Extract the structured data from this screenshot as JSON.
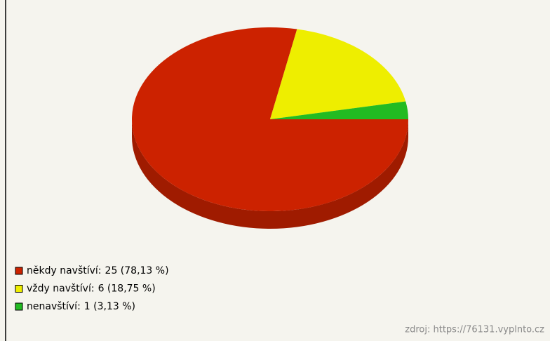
{
  "chart_data": {
    "type": "pie",
    "categories": [
      "někdy navštíví:",
      "vždy navštíví:",
      "nenavštíví:"
    ],
    "values": [
      25,
      6,
      1
    ],
    "value_labels": [
      "25 (78,13 %)",
      "6 (18,75 %)",
      "1 (3,13 %)"
    ],
    "colors": [
      "#cc2200",
      "#eeee00",
      "#22bb22"
    ],
    "source": "zdroj: https://76131.vyplnto.cz"
  }
}
